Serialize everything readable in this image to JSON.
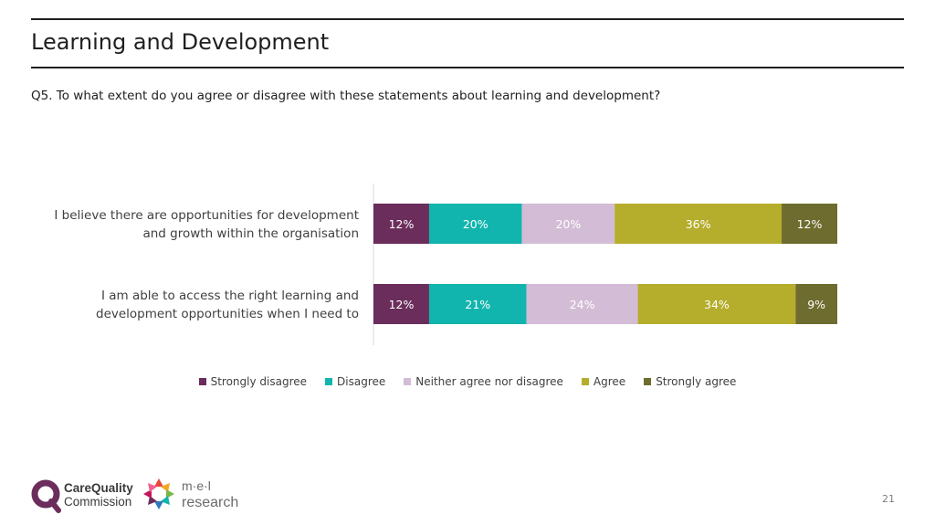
{
  "header": {
    "title": "Learning and Development",
    "question": "Q5. To what extent do you agree or disagree with these statements about learning and development?"
  },
  "chart_data": {
    "type": "bar",
    "orientation": "horizontal",
    "stacked": true,
    "percent_stacked": true,
    "title": "",
    "xlabel": "",
    "ylabel": "",
    "xlim": [
      0,
      100
    ],
    "grid": false,
    "legend_position": "bottom",
    "categories": [
      [
        "I believe there are opportunities for development",
        "and growth within the organisation"
      ],
      [
        "I am able to access the right learning and",
        "development opportunities when I need to"
      ]
    ],
    "series": [
      {
        "name": "Strongly disagree",
        "color": "#6b2d5c",
        "label_color": "#ffffff",
        "values": [
          12,
          12
        ]
      },
      {
        "name": "Disagree",
        "color": "#12b5ae",
        "label_color": "#ffffff",
        "values": [
          20,
          21
        ]
      },
      {
        "name": "Neither agree nor disagree",
        "color": "#d3bcd5",
        "label_color": "#ffffff",
        "values": [
          20,
          24
        ]
      },
      {
        "name": "Agree",
        "color": "#b5ad2c",
        "label_color": "#ffffff",
        "values": [
          36,
          34
        ]
      },
      {
        "name": "Strongly agree",
        "color": "#6e6c2e",
        "label_color": "#ffffff",
        "values": [
          12,
          9
        ]
      }
    ]
  },
  "footer": {
    "logo_cqc_line1": "CareQuality",
    "logo_cqc_line2": "Commission",
    "logo_mel_line1": "m·e·l",
    "logo_mel_line2": "research",
    "page_number": "21"
  }
}
